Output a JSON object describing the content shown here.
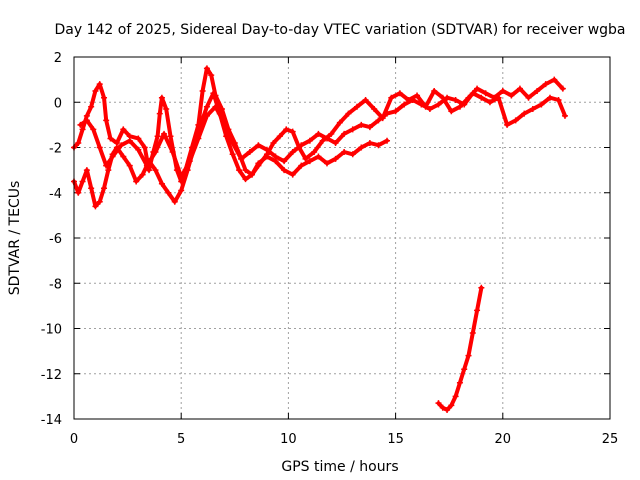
{
  "chart_data": {
    "type": "scatter",
    "title": "Day 142 of 2025, Sidereal Day-to-day VTEC variation (SDTVAR) for receiver wgba",
    "xlabel": "GPS time / hours",
    "ylabel": "SDTVAR / TECUs",
    "xlim": [
      0,
      25
    ],
    "ylim": [
      -14,
      2
    ],
    "xticks": [
      0,
      5,
      10,
      15,
      20,
      25
    ],
    "yticks": [
      -14,
      -12,
      -10,
      -8,
      -6,
      -4,
      -2,
      0,
      2
    ],
    "grid": true,
    "marker": "+",
    "series": [
      {
        "name": "trace-a",
        "color": "#ff0000",
        "points": [
          [
            0.0,
            -2.0
          ],
          [
            0.2,
            -1.8
          ],
          [
            0.4,
            -1.2
          ],
          [
            0.6,
            -0.6
          ],
          [
            0.8,
            -0.2
          ],
          [
            1.0,
            0.5
          ],
          [
            1.2,
            0.8
          ],
          [
            1.4,
            0.2
          ],
          [
            1.5,
            -0.8
          ],
          [
            1.7,
            -1.6
          ],
          [
            2.0,
            -1.8
          ],
          [
            2.3,
            -1.2
          ],
          [
            2.6,
            -1.5
          ],
          [
            3.0,
            -1.6
          ],
          [
            3.3,
            -2.0
          ],
          [
            3.5,
            -3.0
          ],
          [
            3.7,
            -2.2
          ],
          [
            3.9,
            -1.5
          ],
          [
            4.0,
            -0.5
          ],
          [
            4.1,
            0.2
          ],
          [
            4.3,
            -0.3
          ],
          [
            4.5,
            -1.5
          ],
          [
            4.8,
            -3.0
          ],
          [
            5.0,
            -3.5
          ],
          [
            5.2,
            -3.0
          ],
          [
            5.5,
            -2.0
          ],
          [
            5.8,
            -1.0
          ],
          [
            6.0,
            0.5
          ],
          [
            6.2,
            1.5
          ],
          [
            6.4,
            1.2
          ],
          [
            6.6,
            0.3
          ],
          [
            6.9,
            -0.3
          ],
          [
            7.2,
            -1.2
          ],
          [
            7.5,
            -1.8
          ],
          [
            7.8,
            -2.5
          ],
          [
            8.0,
            -3.0
          ],
          [
            8.3,
            -3.2
          ],
          [
            8.6,
            -2.8
          ],
          [
            9.0,
            -2.3
          ],
          [
            9.3,
            -1.8
          ],
          [
            9.6,
            -1.5
          ],
          [
            9.9,
            -1.2
          ],
          [
            10.2,
            -1.3
          ],
          [
            10.5,
            -2.0
          ],
          [
            10.8,
            -2.5
          ],
          [
            11.2,
            -2.2
          ],
          [
            11.6,
            -1.7
          ],
          [
            12.0,
            -1.4
          ],
          [
            12.4,
            -0.9
          ],
          [
            12.8,
            -0.5
          ],
          [
            13.2,
            -0.2
          ],
          [
            13.6,
            0.1
          ],
          [
            14.0,
            -0.3
          ],
          [
            14.4,
            -0.7
          ],
          [
            14.8,
            0.2
          ],
          [
            15.2,
            0.4
          ],
          [
            15.6,
            0.1
          ],
          [
            16.0,
            0.3
          ],
          [
            16.4,
            -0.2
          ],
          [
            16.8,
            0.5
          ],
          [
            17.2,
            0.2
          ],
          [
            17.6,
            -0.4
          ],
          [
            18.0,
            -0.2
          ],
          [
            18.4,
            0.2
          ],
          [
            18.8,
            0.6
          ],
          [
            19.2,
            0.4
          ],
          [
            19.6,
            0.2
          ],
          [
            20.0,
            0.5
          ],
          [
            20.4,
            0.3
          ],
          [
            20.8,
            0.6
          ],
          [
            21.2,
            0.2
          ],
          [
            21.6,
            0.5
          ],
          [
            22.0,
            0.8
          ],
          [
            22.4,
            1.0
          ],
          [
            22.8,
            0.6
          ]
        ]
      },
      {
        "name": "trace-b",
        "color": "#ff0000",
        "points": [
          [
            0.0,
            -3.5
          ],
          [
            0.2,
            -4.0
          ],
          [
            0.4,
            -3.5
          ],
          [
            0.6,
            -3.0
          ],
          [
            0.8,
            -3.8
          ],
          [
            1.0,
            -4.6
          ],
          [
            1.2,
            -4.4
          ],
          [
            1.4,
            -3.8
          ],
          [
            1.6,
            -3.0
          ],
          [
            1.8,
            -2.3
          ],
          [
            2.0,
            -2.0
          ],
          [
            2.3,
            -2.4
          ],
          [
            2.6,
            -2.8
          ],
          [
            2.9,
            -3.5
          ],
          [
            3.2,
            -3.2
          ],
          [
            3.5,
            -2.6
          ],
          [
            3.8,
            -3.0
          ],
          [
            4.1,
            -3.6
          ],
          [
            4.4,
            -4.0
          ],
          [
            4.7,
            -4.4
          ],
          [
            5.0,
            -3.9
          ],
          [
            5.3,
            -3.0
          ],
          [
            5.6,
            -2.0
          ],
          [
            5.9,
            -1.0
          ],
          [
            6.2,
            -0.2
          ],
          [
            6.5,
            0.4
          ],
          [
            6.8,
            -0.5
          ],
          [
            7.1,
            -1.5
          ],
          [
            7.4,
            -2.3
          ],
          [
            7.7,
            -3.0
          ],
          [
            8.0,
            -3.4
          ],
          [
            8.3,
            -3.2
          ],
          [
            8.6,
            -2.7
          ],
          [
            9.0,
            -2.4
          ],
          [
            9.4,
            -2.6
          ],
          [
            9.8,
            -3.0
          ],
          [
            10.2,
            -3.2
          ],
          [
            10.6,
            -2.8
          ],
          [
            11.0,
            -2.6
          ],
          [
            11.4,
            -2.4
          ],
          [
            11.8,
            -2.7
          ],
          [
            12.2,
            -2.5
          ],
          [
            12.6,
            -2.2
          ],
          [
            13.0,
            -2.3
          ],
          [
            13.4,
            -2.0
          ],
          [
            13.8,
            -1.8
          ],
          [
            14.2,
            -1.9
          ],
          [
            14.6,
            -1.7
          ]
        ]
      },
      {
        "name": "trace-c",
        "color": "#ff0000",
        "points": [
          [
            0.3,
            -1.0
          ],
          [
            0.6,
            -0.8
          ],
          [
            0.9,
            -1.2
          ],
          [
            1.2,
            -2.0
          ],
          [
            1.5,
            -2.8
          ],
          [
            1.8,
            -2.4
          ],
          [
            2.2,
            -1.9
          ],
          [
            2.6,
            -1.7
          ],
          [
            3.0,
            -2.1
          ],
          [
            3.4,
            -2.8
          ],
          [
            3.8,
            -2.2
          ],
          [
            4.2,
            -1.4
          ],
          [
            4.6,
            -2.2
          ],
          [
            5.0,
            -3.3
          ],
          [
            5.4,
            -2.6
          ],
          [
            5.8,
            -1.6
          ],
          [
            6.2,
            -0.6
          ],
          [
            6.6,
            -0.2
          ],
          [
            7.0,
            -0.9
          ],
          [
            7.4,
            -1.8
          ],
          [
            7.8,
            -2.5
          ],
          [
            8.2,
            -2.2
          ],
          [
            8.6,
            -1.9
          ],
          [
            9.0,
            -2.1
          ],
          [
            9.4,
            -2.4
          ],
          [
            9.8,
            -2.6
          ],
          [
            10.2,
            -2.2
          ],
          [
            10.6,
            -1.9
          ],
          [
            11.0,
            -1.7
          ],
          [
            11.4,
            -1.4
          ],
          [
            11.8,
            -1.6
          ],
          [
            12.2,
            -1.8
          ],
          [
            12.6,
            -1.4
          ],
          [
            13.0,
            -1.2
          ],
          [
            13.4,
            -1.0
          ],
          [
            13.8,
            -1.1
          ],
          [
            14.2,
            -0.8
          ],
          [
            14.6,
            -0.5
          ],
          [
            15.0,
            -0.4
          ],
          [
            15.4,
            -0.1
          ],
          [
            15.8,
            0.1
          ],
          [
            16.2,
            -0.1
          ],
          [
            16.6,
            -0.3
          ],
          [
            17.0,
            -0.1
          ],
          [
            17.4,
            0.2
          ],
          [
            17.8,
            0.1
          ],
          [
            18.2,
            -0.1
          ],
          [
            18.6,
            0.4
          ],
          [
            19.0,
            0.2
          ],
          [
            19.4,
            0.0
          ],
          [
            19.8,
            0.2
          ],
          [
            20.2,
            -1.0
          ],
          [
            20.6,
            -0.8
          ],
          [
            21.0,
            -0.5
          ],
          [
            21.4,
            -0.3
          ],
          [
            21.8,
            -0.1
          ],
          [
            22.2,
            0.2
          ],
          [
            22.6,
            0.1
          ],
          [
            22.9,
            -0.6
          ]
        ]
      },
      {
        "name": "trace-d",
        "color": "#ff0000",
        "points": [
          [
            17.0,
            -13.3
          ],
          [
            17.2,
            -13.5
          ],
          [
            17.4,
            -13.6
          ],
          [
            17.6,
            -13.4
          ],
          [
            17.8,
            -13.0
          ],
          [
            18.0,
            -12.4
          ],
          [
            18.2,
            -11.8
          ],
          [
            18.4,
            -11.2
          ],
          [
            18.6,
            -10.2
          ],
          [
            18.8,
            -9.2
          ],
          [
            19.0,
            -8.2
          ]
        ]
      }
    ]
  }
}
